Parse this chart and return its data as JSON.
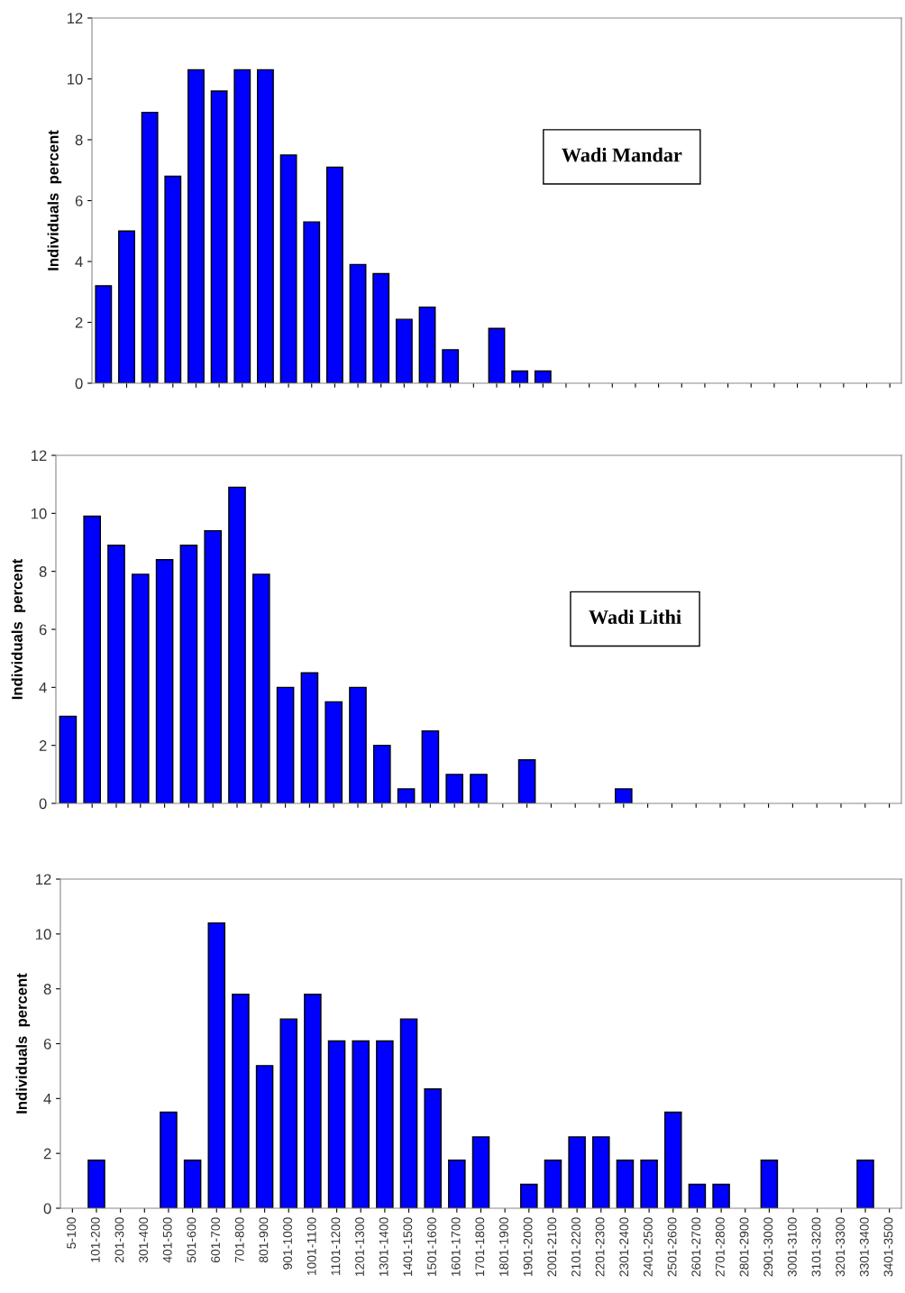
{
  "chart_data": [
    {
      "type": "bar",
      "title": "Wadi Mandar",
      "ylabel": "Individuals  percent",
      "categories": [
        null,
        null,
        null,
        null,
        null,
        null,
        null,
        null,
        null,
        null,
        null,
        null,
        null,
        null,
        null,
        null,
        null,
        null,
        null,
        null,
        null,
        null,
        null,
        null,
        null,
        null,
        null,
        null,
        null,
        null,
        null,
        null,
        null,
        null,
        null
      ],
      "values": [
        3.2,
        5.0,
        8.9,
        6.8,
        10.3,
        9.6,
        10.3,
        10.3,
        7.5,
        5.3,
        7.1,
        3.9,
        3.6,
        2.1,
        2.5,
        1.1,
        null,
        1.8,
        0.4,
        0.4,
        null,
        null,
        null,
        null,
        null,
        null,
        null,
        null,
        null,
        null,
        null,
        null,
        null,
        null,
        null
      ],
      "color": "#0000ff",
      "ylim": [
        0,
        12
      ],
      "yticks": [
        0,
        2,
        4,
        6,
        8,
        10,
        12
      ],
      "grid": false
    },
    {
      "type": "bar",
      "title": "Wadi Lithi",
      "ylabel": "Individuals  percent",
      "categories": [
        null,
        null,
        null,
        null,
        null,
        null,
        null,
        null,
        null,
        null,
        null,
        null,
        null,
        null,
        null,
        null,
        null,
        null,
        null,
        null,
        null,
        null,
        null,
        null,
        null,
        null,
        null,
        null,
        null,
        null,
        null,
        null,
        null,
        null,
        null
      ],
      "values": [
        3.0,
        9.9,
        8.9,
        7.9,
        8.4,
        8.9,
        9.4,
        10.9,
        7.9,
        4.0,
        4.5,
        3.5,
        4.0,
        2.0,
        0.5,
        2.5,
        1.0,
        1.0,
        null,
        1.5,
        null,
        null,
        null,
        0.5,
        null,
        null,
        null,
        null,
        null,
        null,
        null,
        null,
        null,
        null,
        null
      ],
      "color": "#0000ff",
      "ylim": [
        0,
        12
      ],
      "yticks": [
        0,
        2,
        4,
        6,
        8,
        10,
        12
      ],
      "grid": false
    },
    {
      "type": "bar",
      "ylabel": "Individuals  percent",
      "categories": [
        "5-100",
        "101-200",
        "201-300",
        "301-400",
        "401-500",
        "501-600",
        "601-700",
        "701-800",
        "801-900",
        "901-1000",
        "1001-1100",
        "1101-1200",
        "1201-1300",
        "1301-1400",
        "1401-1500",
        "1501-1600",
        "1601-1700",
        "1701-1800",
        "1801-1900",
        "1901-2000",
        "2001-2100",
        "2101-2200",
        "2201-2300",
        "2301-2400",
        "2401-2500",
        "2501-2600",
        "2601-2700",
        "2701-2800",
        "2801-2900",
        "2901-3000",
        "3001-3100",
        "3101-3200",
        "3201-3300",
        "3301-3400",
        "3401-3500"
      ],
      "values": [
        null,
        1.75,
        null,
        null,
        3.5,
        1.75,
        10.4,
        7.8,
        5.2,
        6.9,
        7.8,
        6.1,
        6.1,
        6.1,
        6.9,
        4.35,
        1.75,
        2.6,
        null,
        0.87,
        1.75,
        2.6,
        2.6,
        1.75,
        1.75,
        3.5,
        0.87,
        0.87,
        null,
        1.75,
        null,
        null,
        null,
        1.75,
        null
      ],
      "color": "#0000ff",
      "ylim": [
        0,
        12
      ],
      "yticks": [
        0,
        2,
        4,
        6,
        8,
        10,
        12
      ],
      "grid": false
    }
  ]
}
